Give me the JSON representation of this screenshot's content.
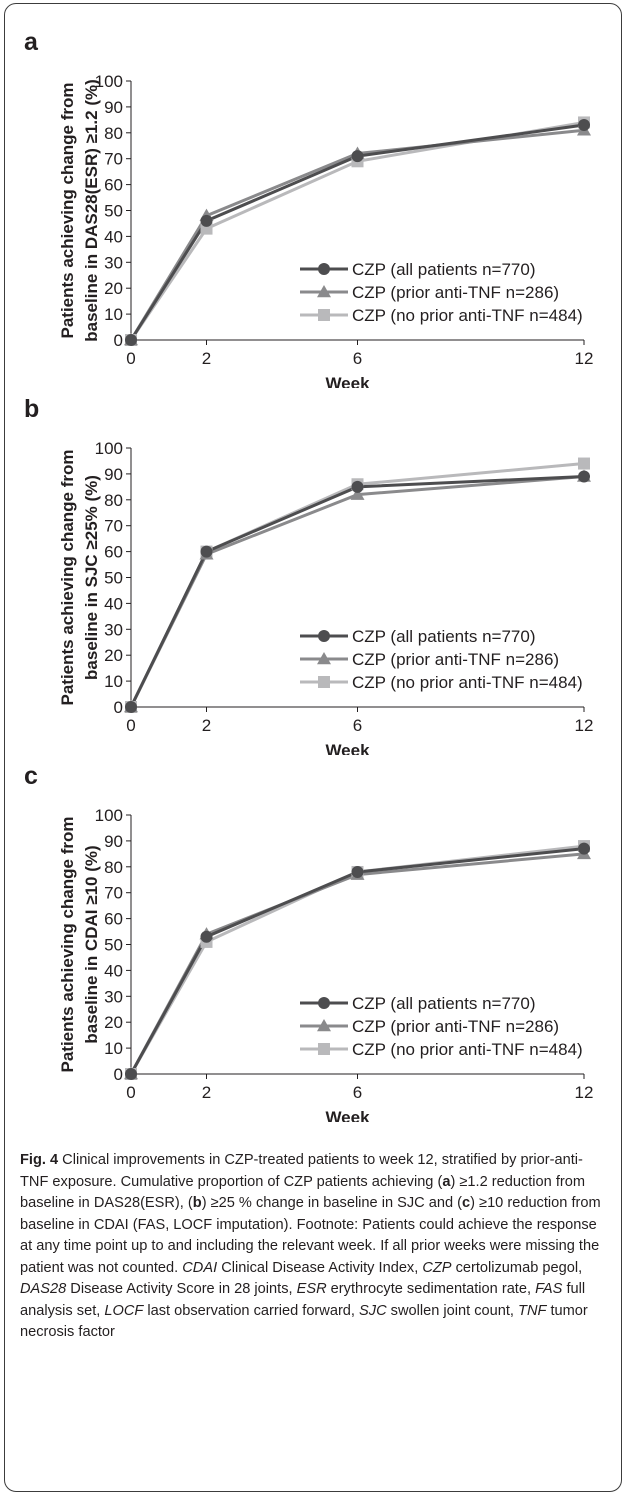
{
  "chart_data": [
    {
      "type": "line",
      "panel_label": "a",
      "xlabel": "Week",
      "ylabel_lines": [
        "Patients achieving change from",
        "baseline in DAS28(ESR) ≥1.2 (%)"
      ],
      "x": [
        0,
        2,
        6,
        12
      ],
      "x_ticks": [
        "0",
        "2",
        "6",
        "12"
      ],
      "y_ticks": [
        "0",
        "10",
        "20",
        "30",
        "40",
        "50",
        "60",
        "70",
        "80",
        "90",
        "100"
      ],
      "ylim": [
        0,
        100
      ],
      "legend_position": "lower-right",
      "series": [
        {
          "name": "CZP (all patients n=770)",
          "marker": "circle",
          "color": "#4d4d4f",
          "values": [
            0,
            46,
            71,
            83
          ]
        },
        {
          "name": "CZP (prior anti-TNF n=286)",
          "marker": "triangle",
          "color": "#8a8a8c",
          "values": [
            0,
            48,
            72,
            81
          ]
        },
        {
          "name": "CZP (no prior anti-TNF n=484)",
          "marker": "square",
          "color": "#b9b9bb",
          "values": [
            0,
            43,
            69,
            84
          ]
        }
      ]
    },
    {
      "type": "line",
      "panel_label": "b",
      "xlabel": "Week",
      "ylabel_lines": [
        "Patients achieving change from",
        "baseline in SJC ≥25% (%)"
      ],
      "x": [
        0,
        2,
        6,
        12
      ],
      "x_ticks": [
        "0",
        "2",
        "6",
        "12"
      ],
      "y_ticks": [
        "0",
        "10",
        "20",
        "30",
        "40",
        "50",
        "60",
        "70",
        "80",
        "90",
        "100"
      ],
      "ylim": [
        0,
        100
      ],
      "legend_position": "lower-right",
      "series": [
        {
          "name": "CZP (all patients n=770)",
          "marker": "circle",
          "color": "#4d4d4f",
          "values": [
            0,
            60,
            85,
            89
          ]
        },
        {
          "name": "CZP (prior anti-TNF n=286)",
          "marker": "triangle",
          "color": "#8a8a8c",
          "values": [
            0,
            59,
            82,
            89
          ]
        },
        {
          "name": "CZP (no prior anti-TNF n=484)",
          "marker": "square",
          "color": "#b9b9bb",
          "values": [
            0,
            60,
            86,
            94
          ]
        }
      ]
    },
    {
      "type": "line",
      "panel_label": "c",
      "xlabel": "Week",
      "ylabel_lines": [
        "Patients achieving change from",
        "baseline in CDAI ≥10 (%)"
      ],
      "x": [
        0,
        2,
        6,
        12
      ],
      "x_ticks": [
        "0",
        "2",
        "6",
        "12"
      ],
      "y_ticks": [
        "0",
        "10",
        "20",
        "30",
        "40",
        "50",
        "60",
        "70",
        "80",
        "90",
        "100"
      ],
      "ylim": [
        0,
        100
      ],
      "legend_position": "lower-right",
      "series": [
        {
          "name": "CZP (all patients n=770)",
          "marker": "circle",
          "color": "#4d4d4f",
          "values": [
            0,
            53,
            78,
            87
          ]
        },
        {
          "name": "CZP (prior anti-TNF n=286)",
          "marker": "triangle",
          "color": "#8a8a8c",
          "values": [
            0,
            54,
            77,
            85
          ]
        },
        {
          "name": "CZP (no prior anti-TNF n=484)",
          "marker": "square",
          "color": "#b9b9bb",
          "values": [
            0,
            51,
            78,
            88
          ]
        }
      ]
    }
  ],
  "caption": {
    "fig_label": "Fig. 4",
    "s1": " Clinical improvements in CZP-treated patients to week 12, stratified by prior-anti-TNF exposure. Cumulative proportion of CZP patients achieving (",
    "a": "a",
    "s2": ") ≥1.2 reduction from baseline in DAS28(ESR), (",
    "b": "b",
    "s3": ") ≥25 % change in baseline in SJC and (",
    "c": "c",
    "s4": ") ≥10 reduction from baseline in CDAI (FAS, LOCF imputation). Footnote: Patients could achieve the response at any time point up to and including the relevant week. If all prior weeks were missing the patient was not counted. ",
    "ab1": "CDAI",
    "d1": " Clinical Disease Activity Index, ",
    "ab2": "CZP",
    "d2": " certolizumab pegol, ",
    "ab3": "DAS28",
    "d3": " Disease Activity Score in 28 joints, ",
    "ab4": "ESR",
    "d4": " erythrocyte sedimentation rate, ",
    "ab5": "FAS",
    "d5": " full analysis set, ",
    "ab6": "LOCF",
    "d6": " last observation carried forward, ",
    "ab7": "SJC",
    "d7": " swollen joint count, ",
    "ab8": "TNF",
    "d8": " tumor necrosis factor"
  }
}
